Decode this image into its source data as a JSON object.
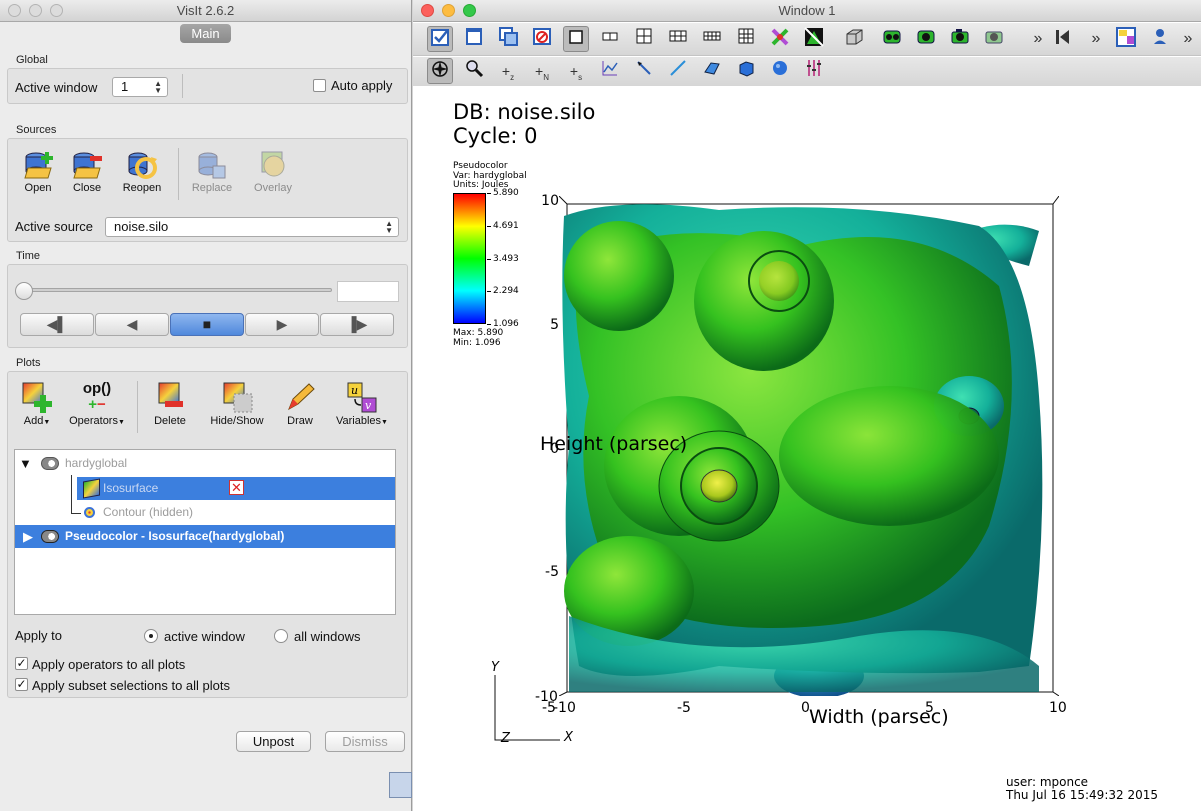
{
  "main_window": {
    "title": "VisIt 2.6.2",
    "tab": "Main",
    "global": {
      "label": "Global",
      "active_window_label": "Active window",
      "active_window_value": "1",
      "auto_apply_label": "Auto apply",
      "auto_apply_checked": false
    },
    "sources": {
      "label": "Sources",
      "buttons": [
        {
          "label": "Open",
          "icon": "open-db-icon",
          "enabled": true
        },
        {
          "label": "Close",
          "icon": "close-db-icon",
          "enabled": true
        },
        {
          "label": "Reopen",
          "icon": "reopen-db-icon",
          "enabled": true
        },
        {
          "label": "Replace",
          "icon": "replace-db-icon",
          "enabled": false
        },
        {
          "label": "Overlay",
          "icon": "overlay-db-icon",
          "enabled": false
        }
      ],
      "active_source_label": "Active source",
      "active_source_value": "noise.silo"
    },
    "time": {
      "label": "Time",
      "slider_value": 0,
      "time_field": ""
    },
    "plots": {
      "label": "Plots",
      "buttons": [
        {
          "label": "Add",
          "icon": "add-plot-icon",
          "menu": true
        },
        {
          "label": "Operators",
          "icon": "operators-icon",
          "menu": true
        },
        {
          "label": "Delete",
          "icon": "delete-plot-icon",
          "menu": false
        },
        {
          "label": "Hide/Show",
          "icon": "hide-show-icon",
          "menu": false
        },
        {
          "label": "Draw",
          "icon": "draw-icon",
          "menu": false
        },
        {
          "label": "Variables",
          "icon": "variables-icon",
          "menu": true
        }
      ],
      "operators_glyph": "op()",
      "tree": [
        {
          "label": "hardyglobal",
          "level": 0,
          "expanded": true,
          "selected": false,
          "dim": true
        },
        {
          "label": "Isosurface",
          "level": 1,
          "selected": true,
          "dim": true
        },
        {
          "label": "Contour (hidden)",
          "level": 1,
          "selected": false,
          "dim": true
        },
        {
          "label": "Pseudocolor - Isosurface(hardyglobal)",
          "level": 0,
          "expanded": false,
          "selected": true,
          "dim": false
        }
      ],
      "apply_to_label": "Apply to",
      "apply_options": [
        "active window",
        "all windows"
      ],
      "apply_selected": "active window",
      "apply_operators_label": "Apply operators to all plots",
      "apply_operators_checked": true,
      "apply_subset_label": "Apply subset selections to all plots",
      "apply_subset_checked": true
    },
    "footer": {
      "unpost_label": "Unpost",
      "dismiss_label": "Dismiss"
    }
  },
  "vis_window": {
    "title": "Window 1",
    "overflow_glyph": "»",
    "axis_letters": {
      "y": "Y",
      "z": "Z",
      "x": "X"
    },
    "db_line": "DB: noise.silo",
    "cycle_line": "Cycle: 0",
    "legend": {
      "plot_name": "Pseudocolor",
      "var": "Var: hardyglobal",
      "units": "Units: Joules",
      "ticks": [
        "5.890",
        "4.691",
        "3.493",
        "2.294",
        "1.096"
      ],
      "max": "Max:  5.890",
      "min": "Min:  1.096",
      "colors": [
        "#ff0000",
        "#ffff00",
        "#00ff00",
        "#00ffff",
        "#0000ff"
      ]
    },
    "axes": {
      "ylabel": "Height (parsec)",
      "xlabel": "Width (parsec)",
      "yticks": [
        "10",
        "5",
        "0",
        "-5",
        "-10"
      ],
      "xticks": [
        "-10",
        "-5",
        "0",
        "5",
        "10"
      ],
      "overlap_label": "-5"
    },
    "user": "user: mponce",
    "timestamp": "Thu Jul 16 15:49:32 2015"
  }
}
